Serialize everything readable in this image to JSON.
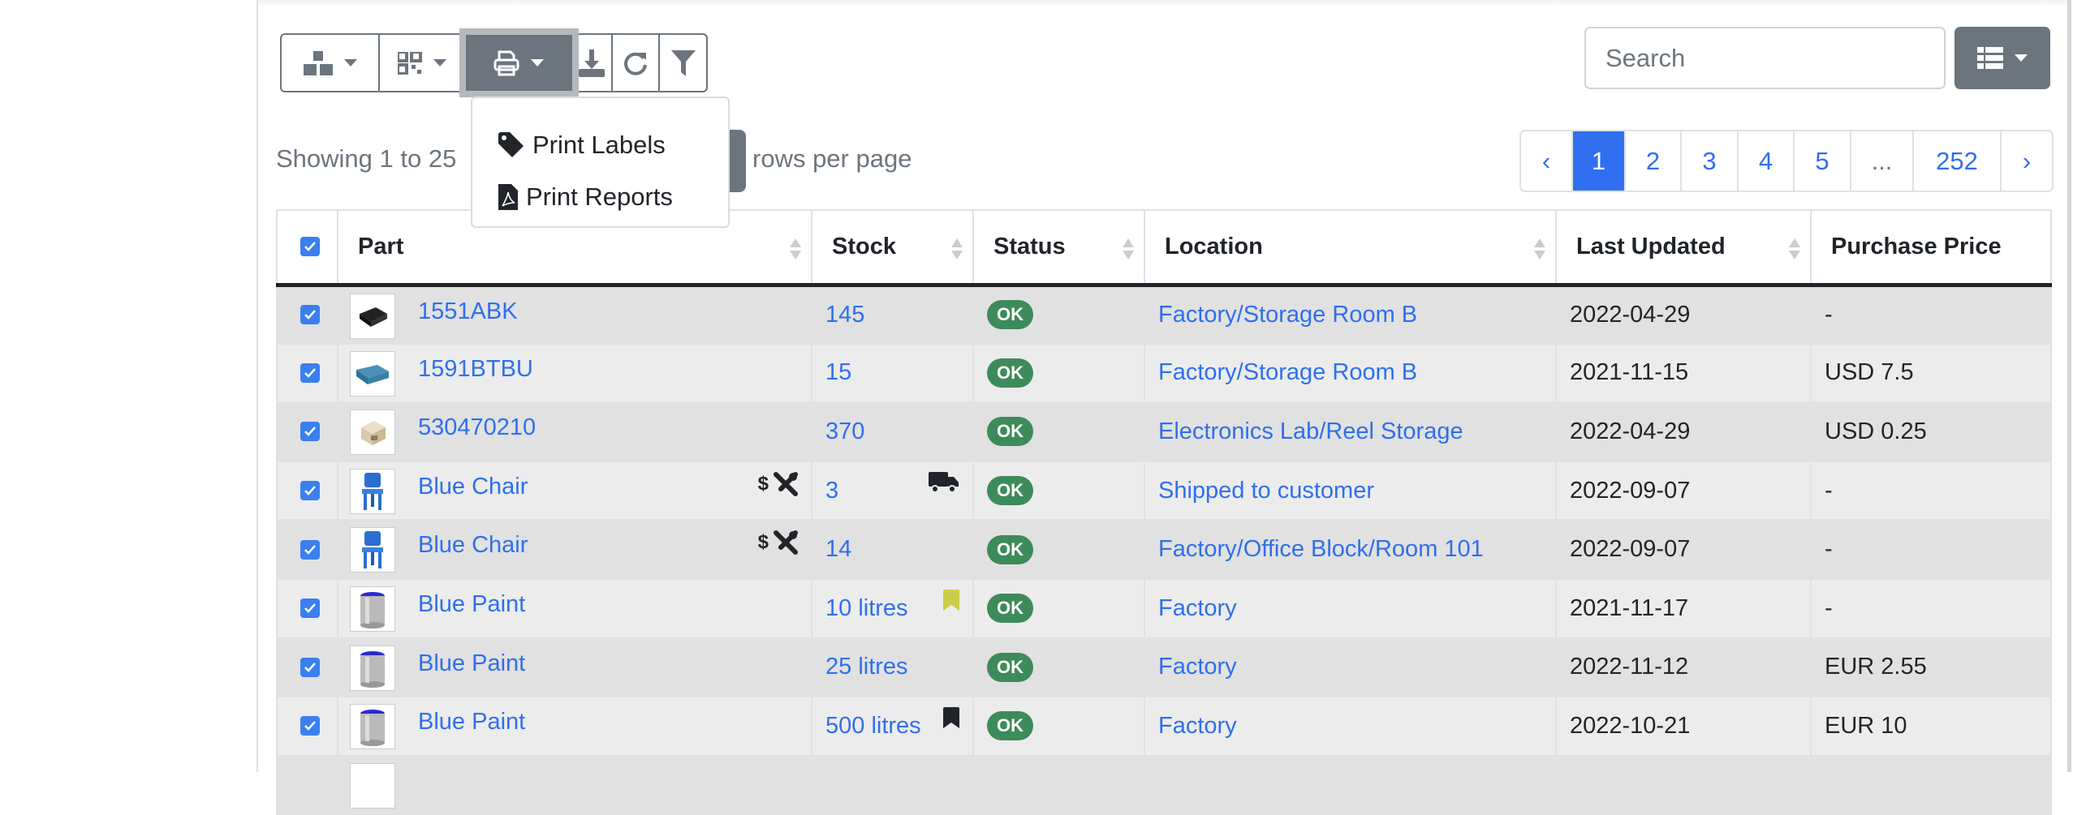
{
  "toolbar": {
    "buttons": [
      {
        "name": "stock-actions",
        "icon": "boxes-icon"
      },
      {
        "name": "barcode-actions",
        "icon": "qrcode-icon"
      },
      {
        "name": "print",
        "icon": "print-icon",
        "active": true
      },
      {
        "name": "download",
        "icon": "download-icon"
      },
      {
        "name": "refresh",
        "icon": "refresh-icon"
      },
      {
        "name": "filter",
        "icon": "filter-icon"
      }
    ],
    "print_menu": [
      {
        "label": "Print Labels",
        "icon": "tag-icon"
      },
      {
        "label": "Print Reports",
        "icon": "file-pdf-icon"
      }
    ]
  },
  "search": {
    "placeholder": "Search"
  },
  "showing_text": "Showing 1 to 25",
  "rows_per_page_text": "rows per page",
  "pagination": {
    "prev": "‹",
    "pages": [
      "1",
      "2",
      "3",
      "4",
      "5",
      "...",
      "252"
    ],
    "next": "›",
    "current": "1"
  },
  "table": {
    "headers": [
      "Part",
      "Stock",
      "Status",
      "Location",
      "Last Updated",
      "Purchase Price"
    ],
    "rows": [
      {
        "part": "1551ABK",
        "thumb": "black-box",
        "stock": "145",
        "status": "OK",
        "location": "Factory/Storage Room B",
        "updated": "2022-04-29",
        "price": "-"
      },
      {
        "part": "1591BTBU",
        "thumb": "blue-box",
        "stock": "15",
        "status": "OK",
        "location": "Factory/Storage Room B",
        "updated": "2021-11-15",
        "price": "USD 7.5"
      },
      {
        "part": "530470210",
        "thumb": "connector",
        "stock": "370",
        "status": "OK",
        "location": "Electronics Lab/Reel Storage",
        "updated": "2022-04-29",
        "price": "USD 0.25"
      },
      {
        "part": "Blue Chair",
        "thumb": "chair",
        "part_icons": [
          "$",
          "tools"
        ],
        "stock": "3",
        "stock_icon": "truck",
        "status": "OK",
        "location": "Shipped to customer",
        "updated": "2022-09-07",
        "price": "-"
      },
      {
        "part": "Blue Chair",
        "thumb": "chair",
        "part_icons": [
          "$",
          "tools"
        ],
        "stock": "14",
        "status": "OK",
        "location": "Factory/Office Block/Room 101",
        "updated": "2022-09-07",
        "price": "-"
      },
      {
        "part": "Blue Paint",
        "thumb": "paint",
        "stock": "10 litres",
        "stock_icon": "bookmark-yellow",
        "status": "OK",
        "location": "Factory",
        "updated": "2021-11-17",
        "price": "-"
      },
      {
        "part": "Blue Paint",
        "thumb": "paint",
        "stock": "25 litres",
        "status": "OK",
        "location": "Factory",
        "updated": "2022-11-12",
        "price": "EUR 2.55"
      },
      {
        "part": "Blue Paint",
        "thumb": "paint",
        "stock": "500 litres",
        "stock_icon": "bookmark-black",
        "status": "OK",
        "location": "Factory",
        "updated": "2022-10-21",
        "price": "EUR 10"
      }
    ]
  },
  "colors": {
    "accent": "#3070f0",
    "ok": "#3d8b5a",
    "secondary": "#6c757d",
    "bookmark_yellow": "#cccc4a"
  }
}
